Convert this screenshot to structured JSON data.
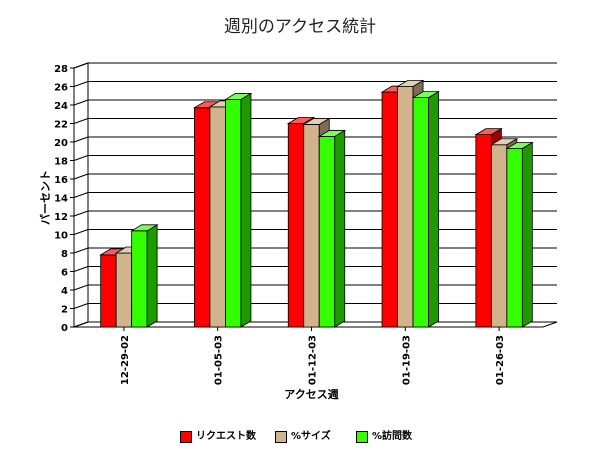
{
  "chart_data": {
    "type": "bar",
    "title": "週別のアクセス統計",
    "xlabel": "アクセス週",
    "ylabel": "パーセント",
    "ylim": [
      0,
      28
    ],
    "yticks": [
      0,
      2,
      4,
      6,
      8,
      10,
      12,
      14,
      16,
      18,
      20,
      22,
      24,
      26,
      28
    ],
    "grid": true,
    "legend_position": "bottom",
    "categories": [
      "12-29-02",
      "01-05-03",
      "01-12-03",
      "01-19-03",
      "01-26-03"
    ],
    "series": [
      {
        "name": "リクエスト数",
        "color": "#ff0000",
        "values": [
          7.8,
          23.7,
          22.0,
          25.4,
          20.8
        ]
      },
      {
        "name": "%サイズ",
        "color": "#d2b48c",
        "values": [
          8.0,
          23.8,
          21.9,
          26.0,
          19.7
        ]
      },
      {
        "name": "%訪問数",
        "color": "#33ff00",
        "values": [
          10.4,
          24.6,
          20.6,
          24.8,
          19.3
        ]
      }
    ]
  }
}
